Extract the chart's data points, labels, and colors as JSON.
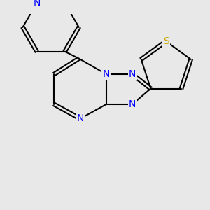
{
  "background_color": "#e8e8e8",
  "bond_color": "#000000",
  "bond_width": 1.5,
  "N_color": "#0000ff",
  "S_color": "#c8a800",
  "font_size": 10,
  "atoms": {
    "N_label": "N",
    "S_label": "S"
  }
}
